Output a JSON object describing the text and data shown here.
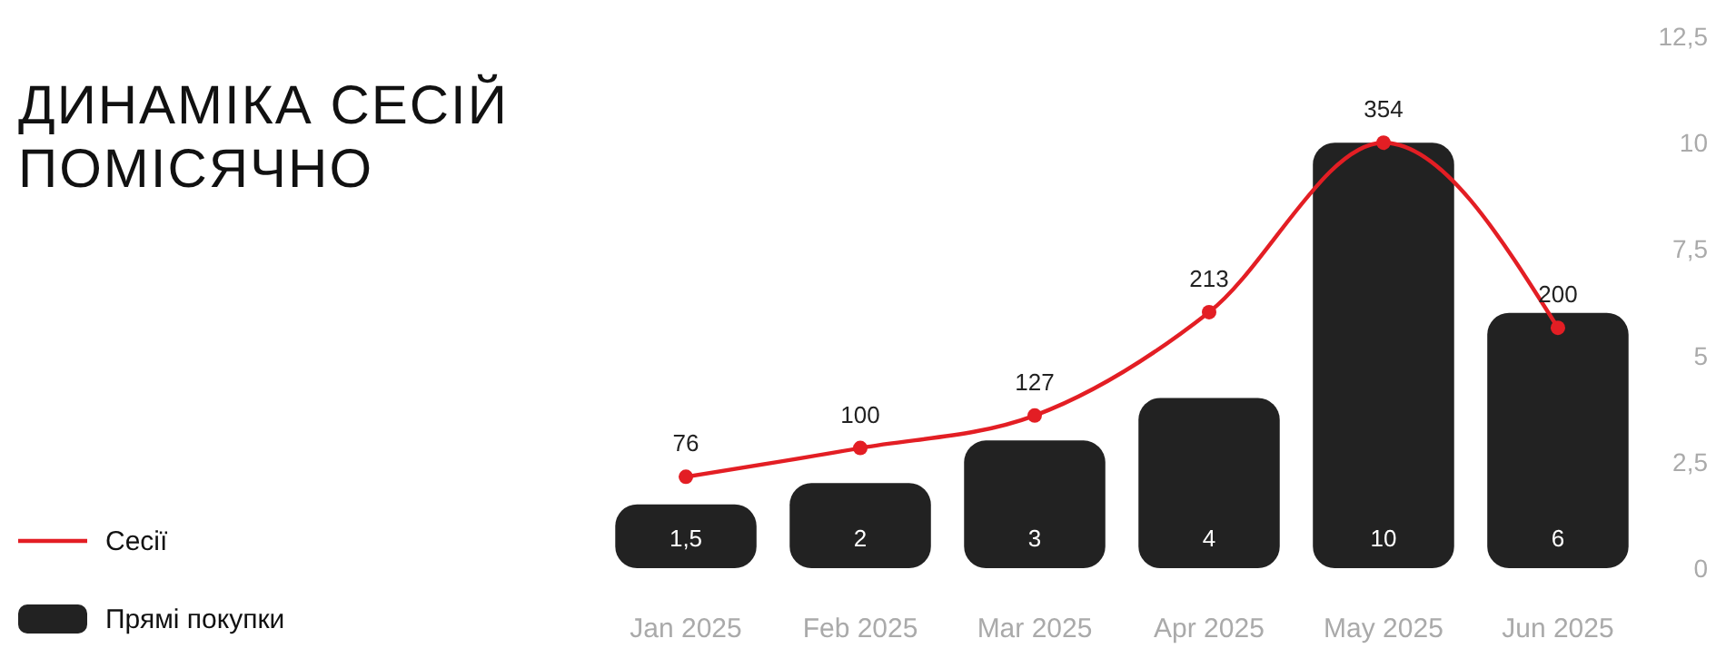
{
  "chart_data": {
    "type": "bar",
    "title": "ДИНАМІКА СЕСІЙ ПОМІСЯЧНО",
    "categories": [
      "Jan 2025",
      "Feb 2025",
      "Mar 2025",
      "Apr 2025",
      "May 2025",
      "Jun 2025"
    ],
    "series": [
      {
        "name": "Сесії",
        "type": "line",
        "axis": "y2",
        "color": "#e31e24",
        "values": [
          76,
          100,
          127,
          213,
          354,
          200
        ]
      },
      {
        "name": "Прямі покупки",
        "color": "#222222",
        "values": [
          1.5,
          2,
          3,
          4,
          10,
          6
        ],
        "value_labels": [
          "1,5",
          "2",
          "3",
          "4",
          "10",
          "6"
        ]
      }
    ],
    "ylim": [
      0,
      12.5
    ],
    "yticks": [
      0,
      {
        "value": 2.5,
        "label": "2,5"
      },
      5,
      {
        "value": 7.5,
        "label": "7,5"
      },
      10,
      {
        "value": 12.5,
        "label": "12,5"
      }
    ],
    "data_labels": true,
    "legend": "bottom left",
    "grid": false,
    "marker": "circle",
    "line_style": "solid"
  }
}
